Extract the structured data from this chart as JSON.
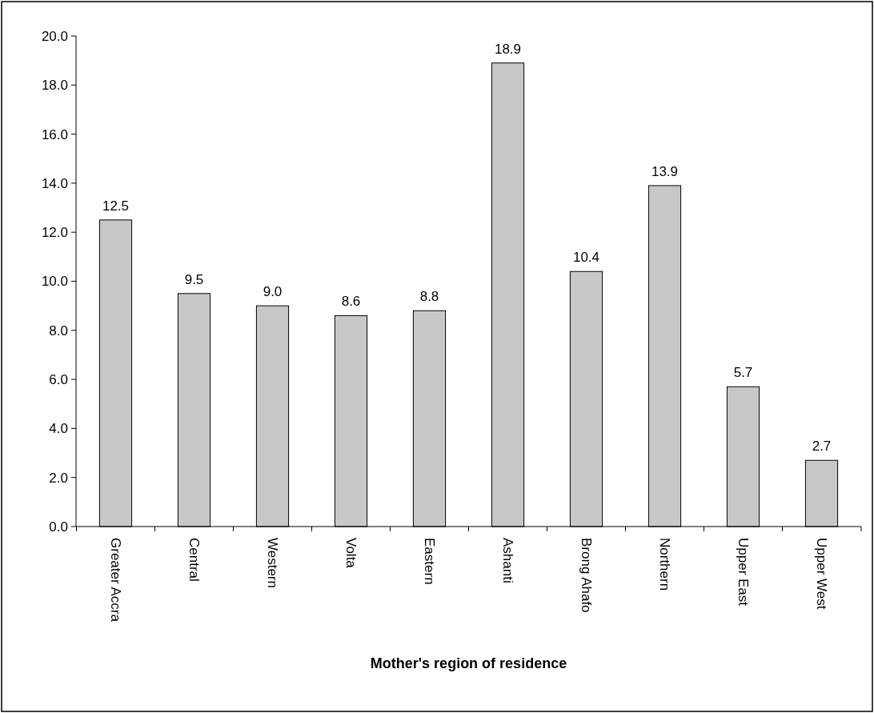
{
  "chart_data": {
    "type": "bar",
    "xlabel": "Mother's region of residence",
    "categories": [
      "Greater Accra",
      "Central",
      "Western",
      "Volta",
      "Eastern",
      "Ashanti",
      "Brong Ahafo",
      "Northern",
      "Upper East",
      "Upper West"
    ],
    "values": [
      12.5,
      9.5,
      9.0,
      8.6,
      8.8,
      18.9,
      10.4,
      13.9,
      5.7,
      2.7
    ],
    "value_labels": [
      "12.5",
      "9.5",
      "9.0",
      "8.6",
      "8.8",
      "18.9",
      "10.4",
      "13.9",
      "5.7",
      "2.7"
    ],
    "color": "#c8c8c8",
    "ylim": [
      0,
      20
    ],
    "yticks": [
      {
        "value": 0,
        "label": "0.0"
      },
      {
        "value": 2,
        "label": "2.0"
      },
      {
        "value": 4,
        "label": "4.0"
      },
      {
        "value": 6,
        "label": "6.0"
      },
      {
        "value": 8,
        "label": "8.0"
      },
      {
        "value": 10,
        "label": "10.0"
      },
      {
        "value": 12,
        "label": "12.0"
      },
      {
        "value": 14,
        "label": "14.0"
      },
      {
        "value": 16,
        "label": "16.0"
      },
      {
        "value": 18,
        "label": "18.0"
      },
      {
        "value": 20,
        "label": "20.0"
      }
    ]
  }
}
